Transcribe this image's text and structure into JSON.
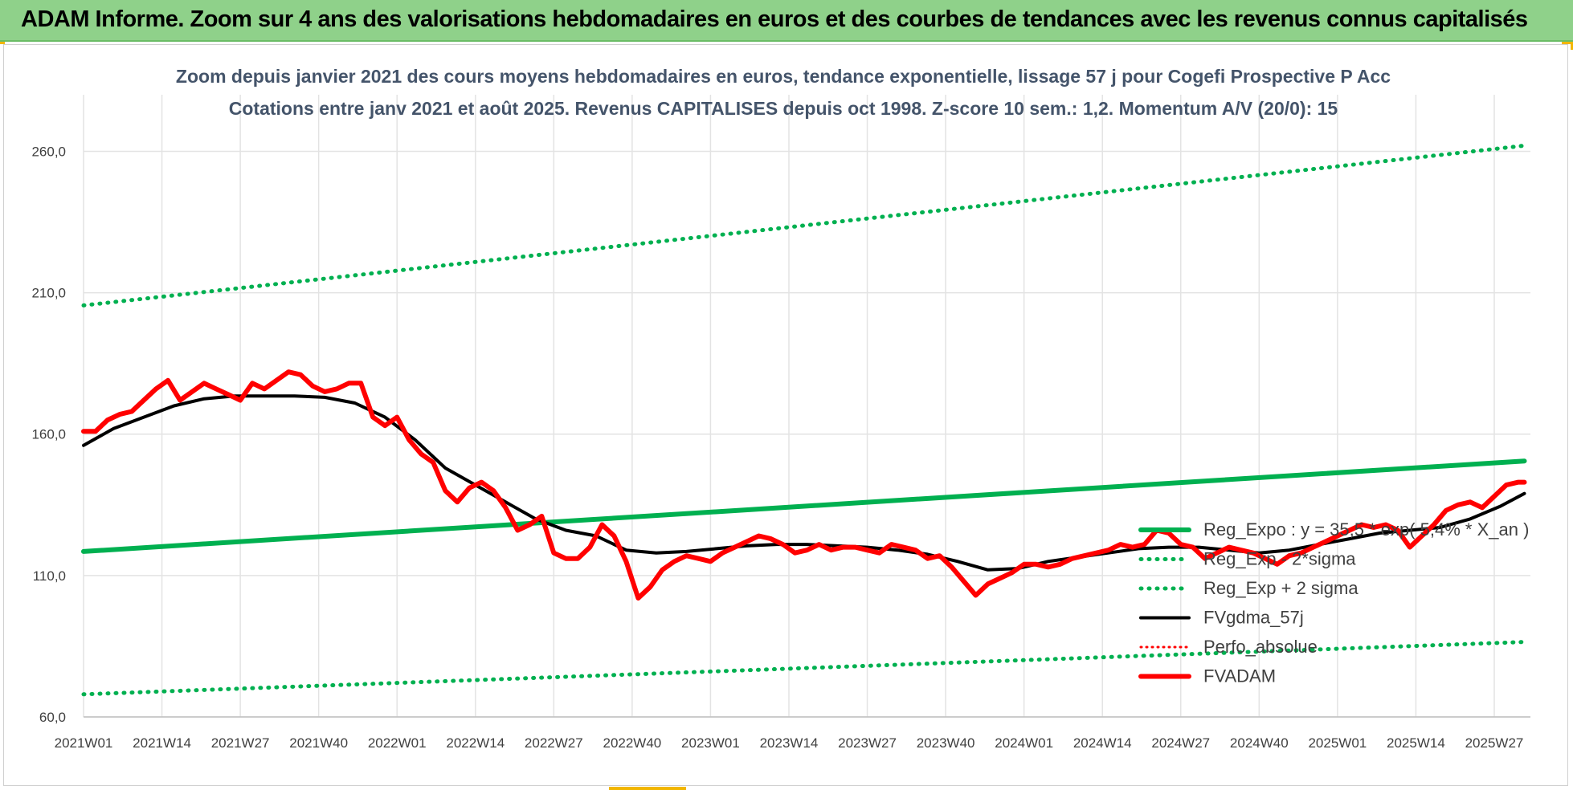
{
  "banner": {
    "title": "ADAM Informe. Zoom sur 4 ans des valorisations hebdomadaires en euros et des courbes de tendances avec les revenus connus capitalisés"
  },
  "colors": {
    "banner_bg": "#8fd18a",
    "trend": "#00b050",
    "smoothing": "#000000",
    "price": "#ff0000",
    "title_text": "#44546a"
  },
  "chart_data": {
    "type": "line",
    "title": "Zoom depuis janvier 2021 des cours moyens hebdomadaires en euros, tendance exponentielle, lissage 57 j pour Cogefi Prospective P Acc",
    "subtitle": "Cotations entre janv 2021 et août 2025. Revenus CAPITALISES depuis oct 1998. Z-score 10 sem.: 1,2. Momentum A/V (20/0): 15",
    "xlabel": "",
    "ylabel": "",
    "ylim": [
      60,
      280
    ],
    "y_ticks": [
      60,
      110,
      160,
      210,
      260
    ],
    "y_tick_labels": [
      "60,0",
      "110,0",
      "160,0",
      "210,0",
      "260,0"
    ],
    "x_range_weeks": [
      0,
      240
    ],
    "x_ticks": [
      {
        "week": 0,
        "label": "2021W01"
      },
      {
        "week": 13,
        "label": "2021W14"
      },
      {
        "week": 26,
        "label": "2021W27"
      },
      {
        "week": 39,
        "label": "2021W40"
      },
      {
        "week": 52,
        "label": "2022W01"
      },
      {
        "week": 65,
        "label": "2022W14"
      },
      {
        "week": 78,
        "label": "2022W27"
      },
      {
        "week": 91,
        "label": "2022W40"
      },
      {
        "week": 104,
        "label": "2023W01"
      },
      {
        "week": 117,
        "label": "2023W14"
      },
      {
        "week": 130,
        "label": "2023W27"
      },
      {
        "week": 143,
        "label": "2023W40"
      },
      {
        "week": 156,
        "label": "2024W01"
      },
      {
        "week": 169,
        "label": "2024W14"
      },
      {
        "week": 182,
        "label": "2024W27"
      },
      {
        "week": 195,
        "label": "2024W40"
      },
      {
        "week": 208,
        "label": "2025W01"
      },
      {
        "week": 221,
        "label": "2025W14"
      },
      {
        "week": 234,
        "label": "2025W27"
      }
    ],
    "grid": true,
    "legend_position": "right",
    "series": [
      {
        "name": "Reg_Expo : y = 35,5 * exp( 5,4% * X_an )",
        "style": "solid-green",
        "x": [
          0,
          239
        ],
        "y": [
          118.5,
          150.5
        ]
      },
      {
        "name": "Reg_Exp - 2*sigma",
        "style": "dotted-green",
        "x": [
          0,
          239
        ],
        "y": [
          68,
          86.5
        ]
      },
      {
        "name": "Reg_Exp + 2 sigma",
        "style": "dotted-green",
        "x": [
          0,
          239
        ],
        "y": [
          205.5,
          262
        ]
      },
      {
        "name": "FVgdma_57j",
        "style": "solid-black",
        "x": [
          0,
          5,
          10,
          15,
          20,
          25,
          30,
          35,
          40,
          45,
          50,
          55,
          60,
          65,
          70,
          75,
          80,
          85,
          90,
          95,
          100,
          105,
          110,
          115,
          120,
          125,
          130,
          135,
          140,
          145,
          150,
          155,
          160,
          165,
          170,
          175,
          180,
          185,
          190,
          195,
          200,
          205,
          210,
          215,
          220,
          225,
          230,
          235,
          239
        ],
        "y": [
          156,
          162,
          166,
          170,
          172.5,
          173.5,
          173.5,
          173.5,
          173,
          171,
          166,
          158,
          148,
          142,
          136,
          130,
          126,
          124,
          119,
          118,
          118.5,
          119.5,
          120.5,
          121,
          121,
          120.5,
          120,
          119,
          117.5,
          115,
          112,
          112.5,
          115,
          116.5,
          118,
          119.5,
          120,
          120,
          119,
          118,
          119,
          121,
          123,
          125,
          126,
          127,
          130,
          134.5,
          139
        ]
      },
      {
        "name": "Perfo_absolue",
        "style": "dotted-red",
        "x": [],
        "y": []
      },
      {
        "name": "FVADAM",
        "style": "solid-red",
        "x": [
          0,
          2,
          4,
          6,
          8,
          10,
          12,
          14,
          16,
          18,
          20,
          22,
          24,
          26,
          28,
          30,
          32,
          34,
          36,
          38,
          40,
          42,
          44,
          46,
          48,
          50,
          52,
          54,
          56,
          58,
          60,
          62,
          64,
          66,
          68,
          70,
          72,
          74,
          76,
          78,
          80,
          82,
          84,
          86,
          88,
          90,
          92,
          94,
          96,
          98,
          100,
          102,
          104,
          106,
          108,
          110,
          112,
          114,
          116,
          118,
          120,
          122,
          124,
          126,
          128,
          130,
          132,
          134,
          136,
          138,
          140,
          142,
          144,
          146,
          148,
          150,
          152,
          154,
          156,
          158,
          160,
          162,
          164,
          166,
          168,
          170,
          172,
          174,
          176,
          178,
          180,
          182,
          184,
          186,
          188,
          190,
          192,
          194,
          196,
          198,
          200,
          202,
          204,
          206,
          208,
          210,
          212,
          214,
          216,
          218,
          220,
          222,
          224,
          226,
          228,
          230,
          232,
          234,
          236,
          238,
          239
        ],
        "y": [
          161,
          161,
          165,
          167,
          168,
          172,
          176,
          179,
          172,
          175,
          178,
          176,
          174,
          172,
          178,
          176,
          179,
          182,
          181,
          177,
          175,
          176,
          178,
          178,
          166,
          163,
          166,
          158,
          153,
          150,
          140,
          136,
          141,
          143,
          140,
          134,
          126,
          128,
          131,
          118,
          116,
          116,
          120,
          128,
          124,
          115,
          102,
          106,
          112,
          115,
          117,
          116,
          115,
          118,
          120,
          122,
          124,
          123,
          121,
          118,
          119,
          121,
          119,
          120,
          120,
          119,
          118,
          121,
          120,
          119,
          116,
          117,
          113,
          108,
          103,
          107,
          109,
          111,
          114,
          114,
          113,
          114,
          116,
          117,
          118,
          119,
          121,
          120,
          121,
          126,
          125,
          121,
          120,
          116,
          118,
          120,
          119,
          118,
          116,
          114,
          117,
          118,
          120,
          122,
          124,
          126,
          128,
          127,
          128,
          126,
          120,
          124,
          128,
          133,
          135,
          136,
          134,
          138,
          142,
          143,
          143
        ]
      }
    ]
  }
}
